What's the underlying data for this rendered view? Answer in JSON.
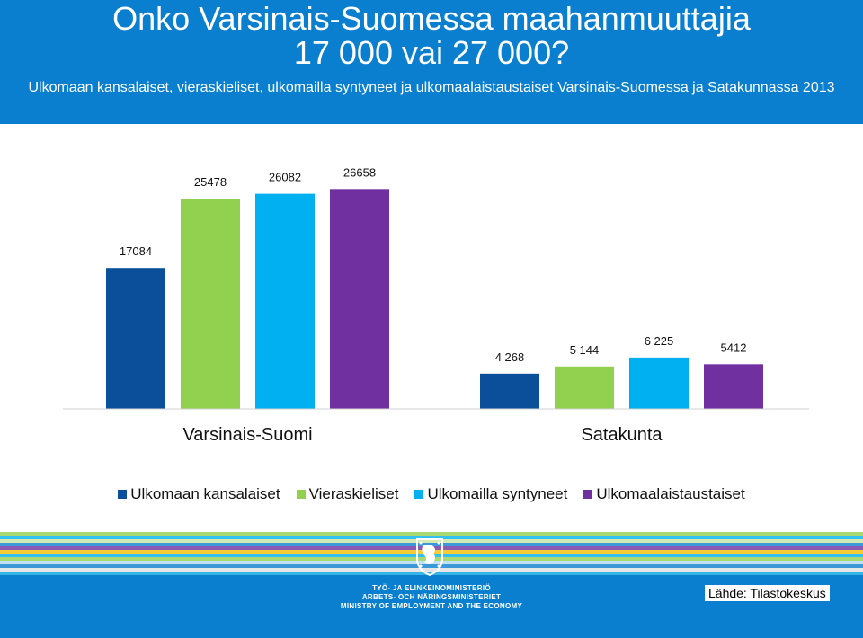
{
  "header": {
    "title_line1": "Onko Varsinais-Suomessa maahanmuuttajia",
    "title_line2": "17 000 vai 27 000?",
    "subtitle": "Ulkomaan kansalaiset, vieraskieliset, ulkomailla syntyneet ja ulkomaalaistaustaiset Varsinais-Suomessa ja Satakunnassa 2013"
  },
  "colors": {
    "header_bg": "#0a7fd0",
    "series": [
      "#0b4f9a",
      "#92d050",
      "#00b0f0",
      "#7030a0"
    ]
  },
  "chart_data": {
    "type": "bar",
    "categories": [
      "Varsinais-Suomi",
      "Satakunta"
    ],
    "series": [
      {
        "name": "Ulkomaan kansalaiset",
        "values": [
          17084,
          4268
        ],
        "labels": [
          "17084",
          "4 268"
        ]
      },
      {
        "name": "Vieraskieliset",
        "values": [
          25478,
          5144
        ],
        "labels": [
          "25478",
          "5 144"
        ]
      },
      {
        "name": "Ulkomailla syntyneet",
        "values": [
          26082,
          6225
        ],
        "labels": [
          "26082",
          "6 225"
        ]
      },
      {
        "name": "Ulkomaalaistaustaiset",
        "values": [
          26658,
          5412
        ],
        "labels": [
          "26658",
          "5412"
        ]
      }
    ],
    "ylim": [
      0,
      28000
    ],
    "grid": false,
    "legend": "bottom"
  },
  "footer": {
    "ministry_fi": "TYÖ- JA ELINKEINOMINISTERIÖ",
    "ministry_sv": "ARBETS- OCH NÄRINGSMINISTERIET",
    "ministry_en": "MINISTRY OF EMPLOYMENT AND THE ECONOMY",
    "source": "Lähde: Tilastokeskus",
    "logo_icon": "finnish-lion-crest-icon"
  }
}
